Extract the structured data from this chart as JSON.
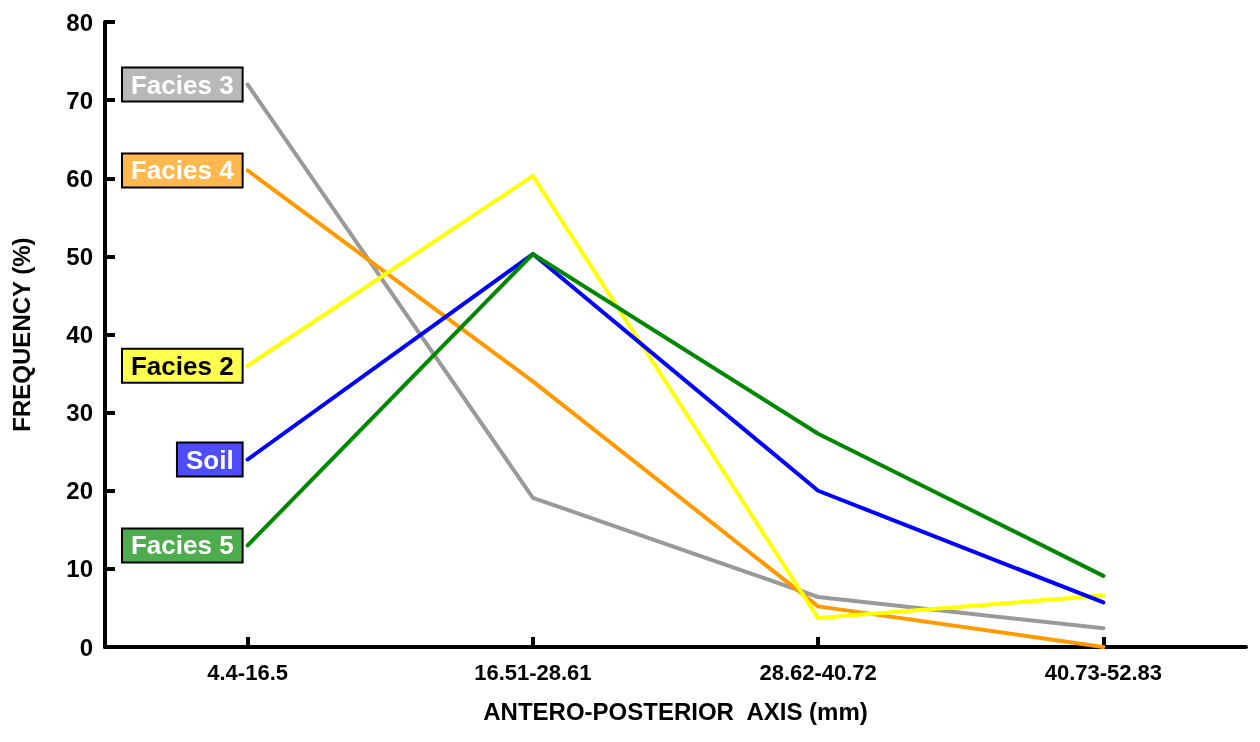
{
  "chart_data": {
    "type": "line",
    "xlabel": "ANTERO-POSTERIOR  AXIS (mm)",
    "ylabel": "FREQUENCY (%)",
    "categories": [
      "4.4-16.5",
      "16.51-28.61",
      "28.62-40.72",
      "40.73-52.83"
    ],
    "ylim": [
      0,
      80
    ],
    "yticks": [
      0,
      10,
      20,
      30,
      40,
      50,
      60,
      70,
      80
    ],
    "grid": false,
    "legend": false,
    "marker": "none",
    "line_style": "solid",
    "series": [
      {
        "name": "Facies 3",
        "color": "#999999",
        "values": [
          72,
          19.1,
          6.4,
          2.4
        ]
      },
      {
        "name": "Facies 4",
        "color": "#ff9900",
        "values": [
          61,
          34,
          5.2,
          0
        ]
      },
      {
        "name": "Facies 2",
        "color": "#ffff00",
        "values": [
          36,
          60.3,
          3.7,
          6.6
        ]
      },
      {
        "name": "Soil",
        "color": "#0000ff",
        "values": [
          24,
          50.3,
          20,
          5.7
        ]
      },
      {
        "name": "Facies 5",
        "color": "#008800",
        "values": [
          13,
          50.3,
          27.3,
          9.1
        ]
      }
    ]
  }
}
